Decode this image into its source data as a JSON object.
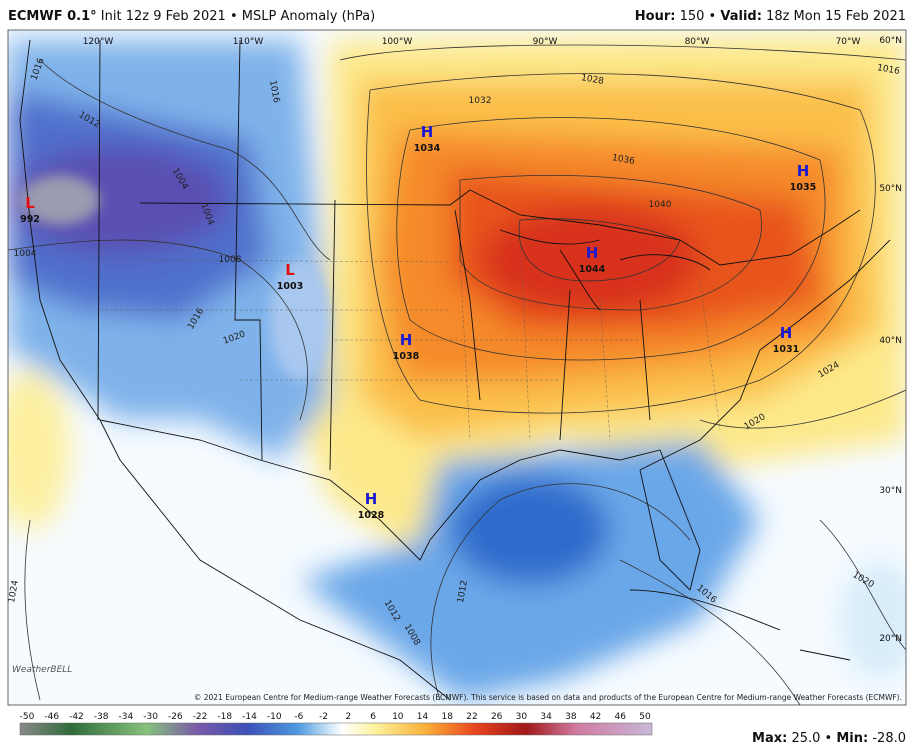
{
  "header": {
    "model": "ECMWF 0.1°",
    "init": "Init 12z 9 Feb 2021 • MSLP Anomaly (hPa)",
    "hour_label": "Hour:",
    "hour": "150 •",
    "valid_label": "Valid:",
    "valid": "18z Mon 15 Feb 2021"
  },
  "map": {
    "longitudes": [
      "120°W",
      "110°W",
      "100°W",
      "90°W",
      "80°W",
      "70°W"
    ],
    "latitudes": [
      "60°N",
      "50°N",
      "40°N",
      "30°N",
      "20°N"
    ],
    "pressure_centers": [
      {
        "letter": "H",
        "value": "1034"
      },
      {
        "letter": "H",
        "value": "1035"
      },
      {
        "letter": "H",
        "value": "1044"
      },
      {
        "letter": "L",
        "value": "1003"
      },
      {
        "letter": "L",
        "value": "992"
      },
      {
        "letter": "H",
        "value": "1038"
      },
      {
        "letter": "H",
        "value": "1031"
      },
      {
        "letter": "H",
        "value": "1028"
      }
    ],
    "contour_labels": [
      "1016",
      "1012",
      "1004",
      "1004",
      "1004",
      "1008",
      "1016",
      "1020",
      "1016",
      "1028",
      "1032",
      "1036",
      "1040",
      "1024",
      "1020",
      "1016",
      "1020",
      "1016",
      "1012",
      "1024",
      "1012",
      "1008"
    ],
    "logo": "WeatherBELL",
    "copyright": "© 2021 European Centre for Medium-range Weather Forecasts (ECMWF). This service is based on data and products of the European Centre for Medium-range Weather Forecasts (ECMWF)."
  },
  "colorbar": {
    "ticks": [
      -50,
      -46,
      -42,
      -38,
      -34,
      -30,
      -26,
      -22,
      -18,
      -14,
      -10,
      -6,
      -2,
      2,
      6,
      10,
      14,
      18,
      22,
      26,
      30,
      34,
      38,
      42,
      46,
      50
    ]
  },
  "stats": {
    "max_label": "Max:",
    "max": "25.0 •",
    "min_label": "Min:",
    "min": "-28.0"
  }
}
